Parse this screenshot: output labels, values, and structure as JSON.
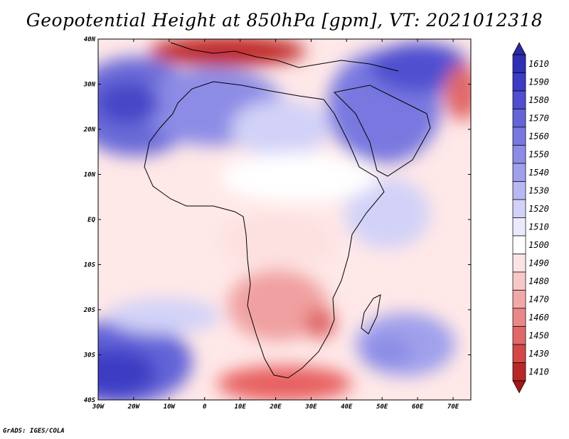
{
  "title": "Geopotential Height at 850hPa [gpm], VT: 2021012318",
  "credit": "GrADS: IGES/COLA",
  "map": {
    "lat_labels": [
      "40N",
      "30N",
      "20N",
      "10N",
      "EQ",
      "10S",
      "20S",
      "30S",
      "40S"
    ],
    "lon_labels": [
      "30W",
      "20W",
      "10W",
      "0",
      "10E",
      "20E",
      "30E",
      "40E",
      "50E",
      "60E",
      "70E"
    ],
    "lat_range": [
      40,
      -40
    ],
    "lon_range": [
      -30,
      75
    ]
  },
  "colorbar": {
    "labels": [
      "1610",
      "1590",
      "1580",
      "1570",
      "1560",
      "1550",
      "1540",
      "1530",
      "1520",
      "1510",
      "1500",
      "1490",
      "1480",
      "1470",
      "1460",
      "1450",
      "1430",
      "1410"
    ],
    "colors": [
      "#2f2fb4",
      "#3c3cc4",
      "#4f4fd0",
      "#6464d8",
      "#7878e0",
      "#8c8ce6",
      "#a0a0ec",
      "#b8b8f2",
      "#d2d2f8",
      "#eaeafc",
      "#ffffff",
      "#fde4e4",
      "#f8c8c8",
      "#f2a8a8",
      "#ea8888",
      "#e06868",
      "#d44848",
      "#b82828"
    ]
  }
}
